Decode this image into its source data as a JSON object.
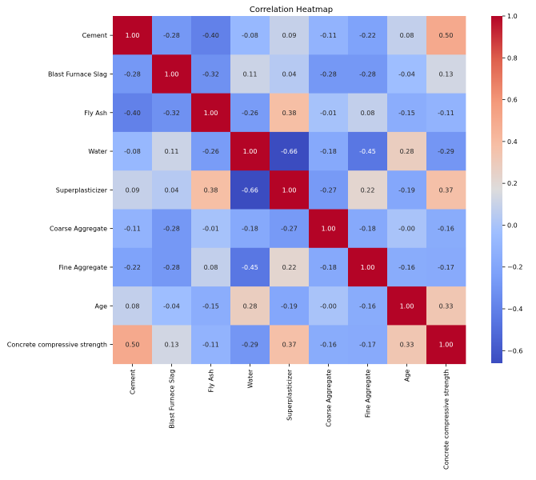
{
  "chart_data": {
    "type": "heatmap",
    "title": "Correlation Heatmap",
    "row_labels": [
      "Cement",
      "Blast Furnace Slag",
      "Fly Ash",
      "Water",
      "Superplasticizer",
      "Coarse Aggregate ",
      "Fine Aggregate",
      "Age",
      "Concrete compressive strength"
    ],
    "col_labels": [
      "Cement",
      "Blast Furnace Slag",
      "Fly Ash",
      "Water",
      "Superplasticizer",
      "Coarse Aggregate",
      "Fine Aggregate",
      "Age",
      "Concrete compressive strength"
    ],
    "values": [
      [
        1.0,
        -0.28,
        -0.4,
        -0.08,
        0.09,
        -0.11,
        -0.22,
        0.08,
        0.5
      ],
      [
        -0.28,
        1.0,
        -0.32,
        0.11,
        0.04,
        -0.28,
        -0.28,
        -0.04,
        0.13
      ],
      [
        -0.4,
        -0.32,
        1.0,
        -0.26,
        0.38,
        -0.01,
        0.08,
        -0.15,
        -0.11
      ],
      [
        -0.08,
        0.11,
        -0.26,
        1.0,
        -0.66,
        -0.18,
        -0.45,
        0.28,
        -0.29
      ],
      [
        0.09,
        0.04,
        0.38,
        -0.66,
        1.0,
        -0.27,
        0.22,
        -0.19,
        0.37
      ],
      [
        -0.11,
        -0.28,
        -0.01,
        -0.18,
        -0.27,
        1.0,
        -0.18,
        -0.0,
        -0.16
      ],
      [
        -0.22,
        -0.28,
        0.08,
        -0.45,
        0.22,
        -0.18,
        1.0,
        -0.16,
        -0.17
      ],
      [
        0.08,
        -0.04,
        -0.15,
        0.28,
        -0.19,
        -0.0,
        -0.16,
        1.0,
        0.33
      ],
      [
        0.5,
        0.13,
        -0.11,
        -0.29,
        0.37,
        -0.16,
        -0.17,
        0.33,
        1.0
      ]
    ],
    "annotations": [
      [
        "1.00",
        "-0.28",
        "-0.40",
        "-0.08",
        "0.09",
        "-0.11",
        "-0.22",
        "0.08",
        "0.50"
      ],
      [
        "-0.28",
        "1.00",
        "-0.32",
        "0.11",
        "0.04",
        "-0.28",
        "-0.28",
        "-0.04",
        "0.13"
      ],
      [
        "-0.40",
        "-0.32",
        "1.00",
        "-0.26",
        "0.38",
        "-0.01",
        "0.08",
        "-0.15",
        "-0.11"
      ],
      [
        "-0.08",
        "0.11",
        "-0.26",
        "1.00",
        "-0.66",
        "-0.18",
        "-0.45",
        "0.28",
        "-0.29"
      ],
      [
        "0.09",
        "0.04",
        "0.38",
        "-0.66",
        "1.00",
        "-0.27",
        "0.22",
        "-0.19",
        "0.37"
      ],
      [
        "-0.11",
        "-0.28",
        "-0.01",
        "-0.18",
        "-0.27",
        "1.00",
        "-0.18",
        "-0.00",
        "-0.16"
      ],
      [
        "-0.22",
        "-0.28",
        "0.08",
        "-0.45",
        "0.22",
        "-0.18",
        "1.00",
        "-0.16",
        "-0.17"
      ],
      [
        "0.08",
        "-0.04",
        "-0.15",
        "0.28",
        "-0.19",
        "-0.00",
        "-0.16",
        "1.00",
        "0.33"
      ],
      [
        "0.50",
        "0.13",
        "-0.11",
        "-0.29",
        "0.37",
        "-0.16",
        "-0.17",
        "0.33",
        "1.00"
      ]
    ],
    "colormap": "coolwarm",
    "vmin": -0.66,
    "vmax": 1.0,
    "colorbar": {
      "ticks": [
        1.0,
        0.8,
        0.6,
        0.4,
        0.2,
        0.0,
        -0.2,
        -0.4,
        -0.6
      ],
      "tick_labels": [
        "1.0",
        "0.8",
        "0.6",
        "0.4",
        "0.2",
        "0.0",
        "−0.2",
        "−0.4",
        "−0.6"
      ],
      "placement": "right"
    },
    "grid": false,
    "xlabel": "",
    "ylabel": ""
  }
}
